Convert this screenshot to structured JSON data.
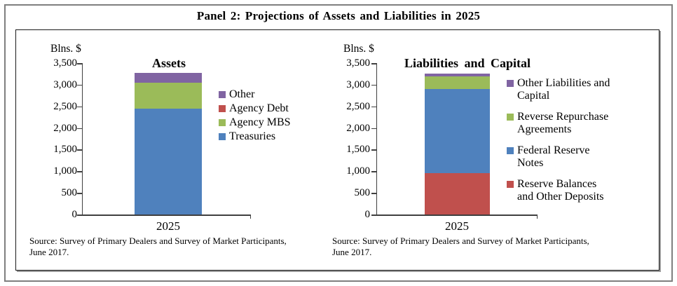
{
  "page_title": "Panel 2: Projections of Assets and Liabilities in 2025",
  "chart_data": [
    {
      "type": "bar",
      "stacked": true,
      "title": "Assets",
      "ylabel": "Blns. $",
      "xlabel": "",
      "categories": [
        "2025"
      ],
      "ylim": [
        0,
        3500
      ],
      "grid": false,
      "legend_position": "right",
      "ytick_values": [
        0,
        500,
        1000,
        1500,
        2000,
        2500,
        3000,
        3500
      ],
      "ytick_labels": [
        "0",
        "500",
        "1,000",
        "1,500",
        "2,000",
        "2,500",
        "3,000",
        "3,500"
      ],
      "series": [
        {
          "name": "Treasuries",
          "values": [
            2450
          ],
          "color": "#4F81BD"
        },
        {
          "name": "Agency MBS",
          "values": [
            600
          ],
          "color": "#9BBB59"
        },
        {
          "name": "Agency Debt",
          "values": [
            0
          ],
          "color": "#C0504D"
        },
        {
          "name": "Other",
          "values": [
            220
          ],
          "color": "#8064A2"
        }
      ],
      "legend": [
        {
          "label": "Other",
          "color": "#8064A2"
        },
        {
          "label": "Agency Debt",
          "color": "#C0504D"
        },
        {
          "label": "Agency MBS",
          "color": "#9BBB59"
        },
        {
          "label": "Treasuries",
          "color": "#4F81BD"
        }
      ],
      "source_lines": [
        "Source: Survey of Primary Dealers and Survey of Market Participants,",
        "June 2017."
      ]
    },
    {
      "type": "bar",
      "stacked": true,
      "title": "Liabilities and Capital",
      "ylabel": "Blns. $",
      "xlabel": "",
      "categories": [
        "2025"
      ],
      "ylim": [
        0,
        3500
      ],
      "grid": false,
      "legend_position": "right",
      "ytick_values": [
        0,
        500,
        1000,
        1500,
        2000,
        2500,
        3000,
        3500
      ],
      "ytick_labels": [
        "0",
        "500",
        "1,000",
        "1,500",
        "2,000",
        "2,500",
        "3,000",
        "3,500"
      ],
      "series": [
        {
          "name": "Reserve Balances and Other Deposits",
          "values": [
            950
          ],
          "color": "#C0504D"
        },
        {
          "name": "Federal Reserve Notes",
          "values": [
            1950
          ],
          "color": "#4F81BD"
        },
        {
          "name": "Reverse Repurchase Agreements",
          "values": [
            300
          ],
          "color": "#9BBB59"
        },
        {
          "name": "Other Liabilities and Capital",
          "values": [
            50
          ],
          "color": "#8064A2"
        }
      ],
      "legend": [
        {
          "label": "Other Liabilities and\nCapital",
          "color": "#8064A2"
        },
        {
          "label": "Reverse Repurchase\nAgreements",
          "color": "#9BBB59"
        },
        {
          "label": "Federal Reserve\nNotes",
          "color": "#4F81BD"
        },
        {
          "label": "Reserve Balances\nand Other Deposits",
          "color": "#C0504D"
        }
      ],
      "source_lines": [
        "Source: Survey of Primary Dealers and Survey of Market Participants,",
        "June 2017."
      ]
    }
  ]
}
